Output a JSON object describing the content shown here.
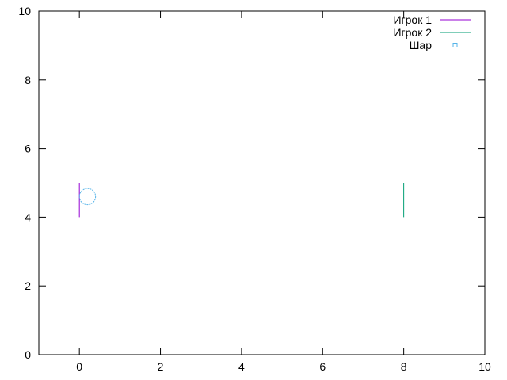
{
  "chart_data": {
    "type": "line",
    "title": "",
    "xlabel": "",
    "ylabel": "",
    "xlim": [
      -1,
      10
    ],
    "ylim": [
      0,
      10
    ],
    "xticks": [
      "0",
      "2",
      "4",
      "6",
      "8",
      "10"
    ],
    "yticks": [
      "0",
      "2",
      "4",
      "6",
      "8",
      "10"
    ],
    "grid": false,
    "legend_position": "top-right",
    "series": [
      {
        "name": "Игрок 1",
        "style": "line",
        "color": "#9400d3",
        "x": [
          0,
          0
        ],
        "y": [
          4,
          5
        ]
      },
      {
        "name": "Игрок 2",
        "style": "line",
        "color": "#009e73",
        "x": [
          8,
          8
        ],
        "y": [
          4,
          5
        ]
      },
      {
        "name": "Шар",
        "style": "circle",
        "color": "#56b4e9",
        "x": [
          0.2
        ],
        "y": [
          4.6
        ],
        "radius": 0.2
      }
    ]
  }
}
